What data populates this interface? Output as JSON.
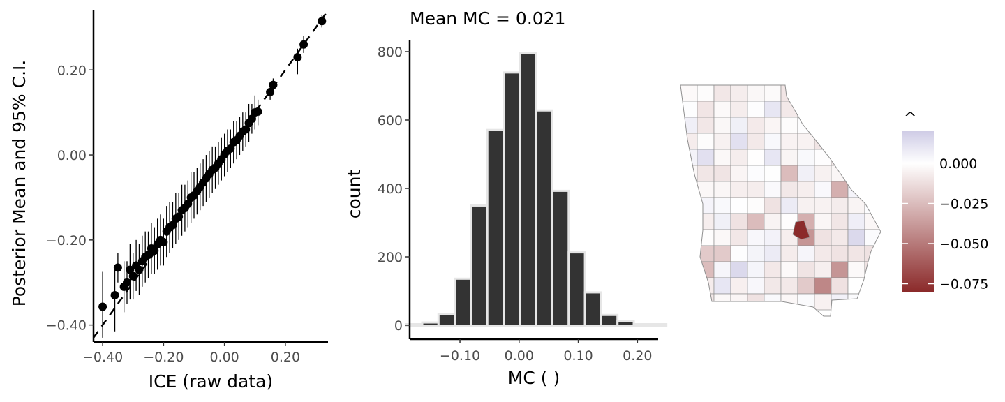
{
  "chart_data": [
    {
      "type": "scatter",
      "xlabel": "ICE (raw data)",
      "ylabel": "Posterior Mean and 95% C.I.",
      "xlim": [
        -0.43,
        0.34
      ],
      "ylim": [
        -0.44,
        0.34
      ],
      "xticks": [
        -0.4,
        -0.2,
        0.0,
        0.2
      ],
      "xtick_labels": [
        "−0.40",
        "−0.20",
        "0.00",
        "0.20"
      ],
      "yticks": [
        -0.4,
        -0.2,
        0.0,
        0.2
      ],
      "ytick_labels": [
        "−0.40",
        "−0.20",
        "0.00",
        "0.20"
      ],
      "reference_line": "dashed y = x",
      "grid": false,
      "points": [
        {
          "x": -0.4,
          "y": -0.357,
          "lo": -0.43,
          "hi": -0.275
        },
        {
          "x": -0.36,
          "y": -0.33,
          "lo": -0.415,
          "hi": -0.265
        },
        {
          "x": -0.35,
          "y": -0.265,
          "lo": -0.3,
          "hi": -0.23
        },
        {
          "x": -0.33,
          "y": -0.31,
          "lo": -0.37,
          "hi": -0.25
        },
        {
          "x": -0.32,
          "y": -0.3,
          "lo": -0.35,
          "hi": -0.25
        },
        {
          "x": -0.31,
          "y": -0.27,
          "lo": -0.34,
          "hi": -0.21
        },
        {
          "x": -0.3,
          "y": -0.285,
          "lo": -0.34,
          "hi": -0.23
        },
        {
          "x": -0.29,
          "y": -0.26,
          "lo": -0.32,
          "hi": -0.2
        },
        {
          "x": -0.28,
          "y": -0.27,
          "lo": -0.33,
          "hi": -0.21
        },
        {
          "x": -0.27,
          "y": -0.25,
          "lo": -0.31,
          "hi": -0.19
        },
        {
          "x": -0.26,
          "y": -0.24,
          "lo": -0.3,
          "hi": -0.18
        },
        {
          "x": -0.25,
          "y": -0.235,
          "lo": -0.29,
          "hi": -0.18
        },
        {
          "x": -0.24,
          "y": -0.22,
          "lo": -0.28,
          "hi": -0.16
        },
        {
          "x": -0.23,
          "y": -0.225,
          "lo": -0.28,
          "hi": -0.17
        },
        {
          "x": -0.22,
          "y": -0.21,
          "lo": -0.27,
          "hi": -0.15
        },
        {
          "x": -0.21,
          "y": -0.2,
          "lo": -0.26,
          "hi": -0.14
        },
        {
          "x": -0.2,
          "y": -0.205,
          "lo": -0.26,
          "hi": -0.15
        },
        {
          "x": -0.19,
          "y": -0.18,
          "lo": -0.24,
          "hi": -0.12
        },
        {
          "x": -0.18,
          "y": -0.17,
          "lo": -0.23,
          "hi": -0.11
        },
        {
          "x": -0.17,
          "y": -0.165,
          "lo": -0.22,
          "hi": -0.11
        },
        {
          "x": -0.16,
          "y": -0.15,
          "lo": -0.21,
          "hi": -0.09
        },
        {
          "x": -0.15,
          "y": -0.145,
          "lo": -0.2,
          "hi": -0.09
        },
        {
          "x": -0.14,
          "y": -0.13,
          "lo": -0.19,
          "hi": -0.07
        },
        {
          "x": -0.13,
          "y": -0.125,
          "lo": -0.18,
          "hi": -0.07
        },
        {
          "x": -0.12,
          "y": -0.115,
          "lo": -0.17,
          "hi": -0.06
        },
        {
          "x": -0.11,
          "y": -0.1,
          "lo": -0.16,
          "hi": -0.04
        },
        {
          "x": -0.1,
          "y": -0.095,
          "lo": -0.15,
          "hi": -0.04
        },
        {
          "x": -0.09,
          "y": -0.085,
          "lo": -0.14,
          "hi": -0.03
        },
        {
          "x": -0.08,
          "y": -0.075,
          "lo": -0.13,
          "hi": -0.02
        },
        {
          "x": -0.07,
          "y": -0.065,
          "lo": -0.12,
          "hi": -0.01
        },
        {
          "x": -0.06,
          "y": -0.055,
          "lo": -0.11,
          "hi": 0.0
        },
        {
          "x": -0.05,
          "y": -0.045,
          "lo": -0.1,
          "hi": 0.01
        },
        {
          "x": -0.04,
          "y": -0.035,
          "lo": -0.09,
          "hi": 0.02
        },
        {
          "x": -0.03,
          "y": -0.03,
          "lo": -0.08,
          "hi": 0.02
        },
        {
          "x": -0.02,
          "y": -0.02,
          "lo": -0.07,
          "hi": 0.03
        },
        {
          "x": -0.01,
          "y": -0.01,
          "lo": -0.06,
          "hi": 0.04
        },
        {
          "x": 0.0,
          "y": 0.002,
          "lo": -0.05,
          "hi": 0.05
        },
        {
          "x": 0.01,
          "y": 0.01,
          "lo": -0.04,
          "hi": 0.06
        },
        {
          "x": 0.02,
          "y": 0.015,
          "lo": -0.03,
          "hi": 0.06
        },
        {
          "x": 0.03,
          "y": 0.03,
          "lo": -0.02,
          "hi": 0.08
        },
        {
          "x": 0.04,
          "y": 0.035,
          "lo": -0.01,
          "hi": 0.08
        },
        {
          "x": 0.05,
          "y": 0.045,
          "lo": 0.0,
          "hi": 0.09
        },
        {
          "x": 0.06,
          "y": 0.055,
          "lo": 0.01,
          "hi": 0.1
        },
        {
          "x": 0.07,
          "y": 0.06,
          "lo": 0.02,
          "hi": 0.1
        },
        {
          "x": 0.08,
          "y": 0.075,
          "lo": 0.03,
          "hi": 0.12
        },
        {
          "x": 0.09,
          "y": 0.085,
          "lo": 0.05,
          "hi": 0.12
        },
        {
          "x": 0.1,
          "y": 0.1,
          "lo": 0.06,
          "hi": 0.14
        },
        {
          "x": 0.11,
          "y": 0.102,
          "lo": 0.07,
          "hi": 0.13
        },
        {
          "x": 0.15,
          "y": 0.148,
          "lo": 0.13,
          "hi": 0.17
        },
        {
          "x": 0.16,
          "y": 0.165,
          "lo": 0.15,
          "hi": 0.18
        },
        {
          "x": 0.24,
          "y": 0.23,
          "lo": 0.19,
          "hi": 0.25
        },
        {
          "x": 0.26,
          "y": 0.26,
          "lo": 0.24,
          "hi": 0.28
        },
        {
          "x": 0.32,
          "y": 0.315,
          "lo": 0.3,
          "hi": 0.33
        }
      ]
    },
    {
      "type": "bar",
      "title": "Mean MC = 0.021",
      "xlabel": "MC ( )",
      "ylabel": "count",
      "xlim": [
        -0.185,
        0.235
      ],
      "ylim": [
        0,
        800
      ],
      "xticks": [
        -0.1,
        0.0,
        0.1,
        0.2
      ],
      "xtick_labels": [
        "−0.10",
        "0.00",
        "0.10",
        "0.20"
      ],
      "yticks": [
        0,
        200,
        400,
        600,
        800
      ],
      "ytick_labels": [
        "0",
        "200",
        "400",
        "600",
        "800"
      ],
      "bin_width": 0.0275,
      "bin_centers": [
        -0.1775,
        -0.15,
        -0.1225,
        -0.095,
        -0.0675,
        -0.04,
        -0.0125,
        0.015,
        0.0425,
        0.07,
        0.0975,
        0.125,
        0.1525,
        0.18,
        0.2075,
        0.235
      ],
      "values": [
        0,
        5,
        30,
        133,
        347,
        568,
        736,
        792,
        625,
        390,
        210,
        93,
        27,
        10,
        0,
        0
      ],
      "grid": false
    },
    {
      "type": "map",
      "legend_title": "^",
      "legend_ticks": [
        "0.000",
        "−0.025",
        "−0.050",
        "−0.075"
      ],
      "legend_values": [
        0.0,
        -0.025,
        -0.05,
        -0.075
      ],
      "legend_range": [
        -0.08,
        0.02
      ],
      "legend_placement": "right",
      "colors": {
        "low": "#8b2a2a",
        "mid": "#ffffff",
        "high": "#cfcce6"
      }
    }
  ],
  "colors": {
    "bar_fill": "#333333",
    "bar_edge": "#e6e6e6",
    "point": "#000000",
    "axis": "#000000",
    "county_border": "#8f8f8f"
  }
}
